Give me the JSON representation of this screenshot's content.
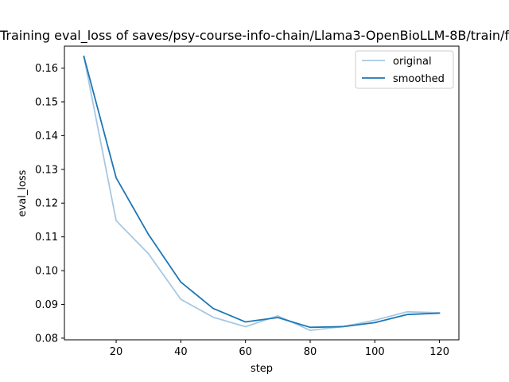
{
  "chart_data": {
    "type": "line",
    "title": "Training eval_loss of saves/psy-course-info-chain/Llama3-OpenBioLLM-8B/train/f",
    "xlabel": "step",
    "ylabel": "eval_loss",
    "xlim": [
      4,
      126
    ],
    "ylim": [
      0.0795,
      0.1665
    ],
    "xticks": [
      20,
      40,
      60,
      80,
      100,
      120
    ],
    "yticks": [
      0.08,
      0.09,
      0.1,
      0.11,
      0.12,
      0.13,
      0.14,
      0.15,
      0.16
    ],
    "ytick_labels": [
      "0.08",
      "0.09",
      "0.10",
      "0.11",
      "0.12",
      "0.13",
      "0.14",
      "0.15",
      "0.16"
    ],
    "grid": false,
    "legend_position": "top-right",
    "series": [
      {
        "name": "original",
        "color": "#a6c8e3",
        "x": [
          10,
          20,
          30,
          40,
          50,
          60,
          70,
          80,
          90,
          100,
          110,
          120
        ],
        "values": [
          0.1635,
          0.1148,
          0.105,
          0.0915,
          0.0862,
          0.0834,
          0.0866,
          0.0823,
          0.0834,
          0.0853,
          0.0878,
          0.0875
        ]
      },
      {
        "name": "smoothed",
        "color": "#1f77b4",
        "x": [
          10,
          20,
          30,
          40,
          50,
          60,
          70,
          80,
          90,
          100,
          110,
          120
        ],
        "values": [
          0.1635,
          0.1275,
          0.1107,
          0.0966,
          0.0888,
          0.0848,
          0.0861,
          0.0832,
          0.0834,
          0.0846,
          0.087,
          0.0874
        ]
      }
    ]
  }
}
